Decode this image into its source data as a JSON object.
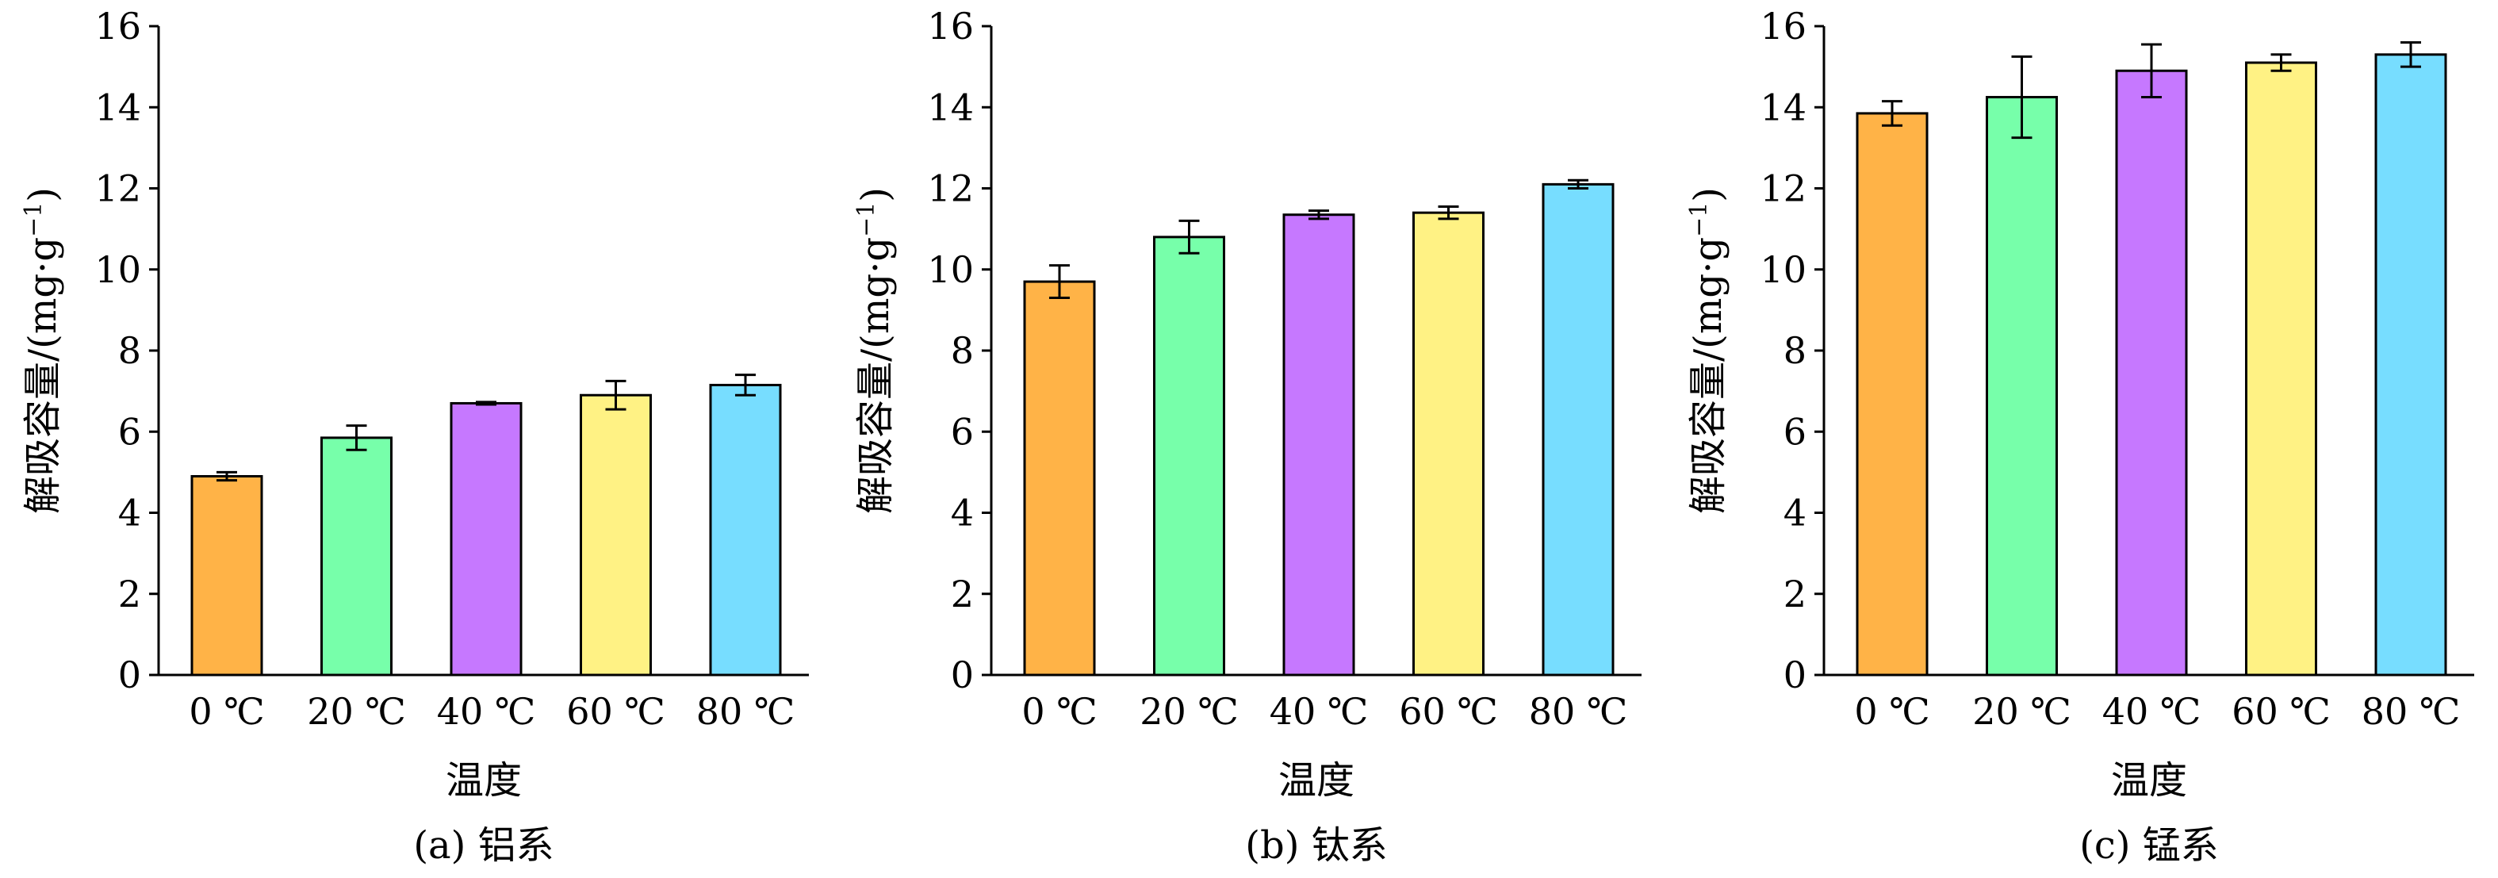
{
  "chart_data": [
    {
      "type": "bar",
      "caption": "(a) 铝系",
      "xlabel": "温度",
      "ylabel_main": "解吸容量/(mg·g",
      "ylabel_sup": "−1",
      "ylabel_close": ")",
      "ylim": [
        0,
        16
      ],
      "yticks": [
        "0",
        "2",
        "4",
        "6",
        "8",
        "10",
        "12",
        "14",
        "16"
      ],
      "categories": [
        "0 ℃",
        "20 ℃",
        "40 ℃",
        "60 ℃",
        "80 ℃"
      ],
      "values": [
        4.9,
        5.85,
        6.7,
        6.9,
        7.15
      ],
      "errors": [
        0.1,
        0.3,
        0.03,
        0.35,
        0.25
      ],
      "colors": [
        "#FFB347",
        "#77FFAA",
        "#C678FF",
        "#FFF284",
        "#77DDFF"
      ]
    },
    {
      "type": "bar",
      "caption": "(b) 钛系",
      "xlabel": "温度",
      "ylabel_main": "解吸容量/(mg·g",
      "ylabel_sup": "−1",
      "ylabel_close": ")",
      "ylim": [
        0,
        16
      ],
      "yticks": [
        "0",
        "2",
        "4",
        "6",
        "8",
        "10",
        "12",
        "14",
        "16"
      ],
      "categories": [
        "0 ℃",
        "20 ℃",
        "40 ℃",
        "60 ℃",
        "80 ℃"
      ],
      "values": [
        9.7,
        10.8,
        11.35,
        11.4,
        12.1
      ],
      "errors": [
        0.4,
        0.4,
        0.1,
        0.15,
        0.1
      ],
      "colors": [
        "#FFB347",
        "#77FFAA",
        "#C678FF",
        "#FFF284",
        "#77DDFF"
      ]
    },
    {
      "type": "bar",
      "caption": "(c) 锰系",
      "xlabel": "温度",
      "ylabel_main": "解吸容量/(mg·g",
      "ylabel_sup": "−1",
      "ylabel_close": ")",
      "ylim": [
        0,
        16
      ],
      "yticks": [
        "0",
        "2",
        "4",
        "6",
        "8",
        "10",
        "12",
        "14",
        "16"
      ],
      "categories": [
        "0 ℃",
        "20 ℃",
        "40 ℃",
        "60 ℃",
        "80 ℃"
      ],
      "values": [
        13.85,
        14.25,
        14.9,
        15.1,
        15.3
      ],
      "errors": [
        0.3,
        1.0,
        0.65,
        0.2,
        0.3
      ],
      "colors": [
        "#FFB347",
        "#77FFAA",
        "#C678FF",
        "#FFF284",
        "#77DDFF"
      ]
    }
  ]
}
